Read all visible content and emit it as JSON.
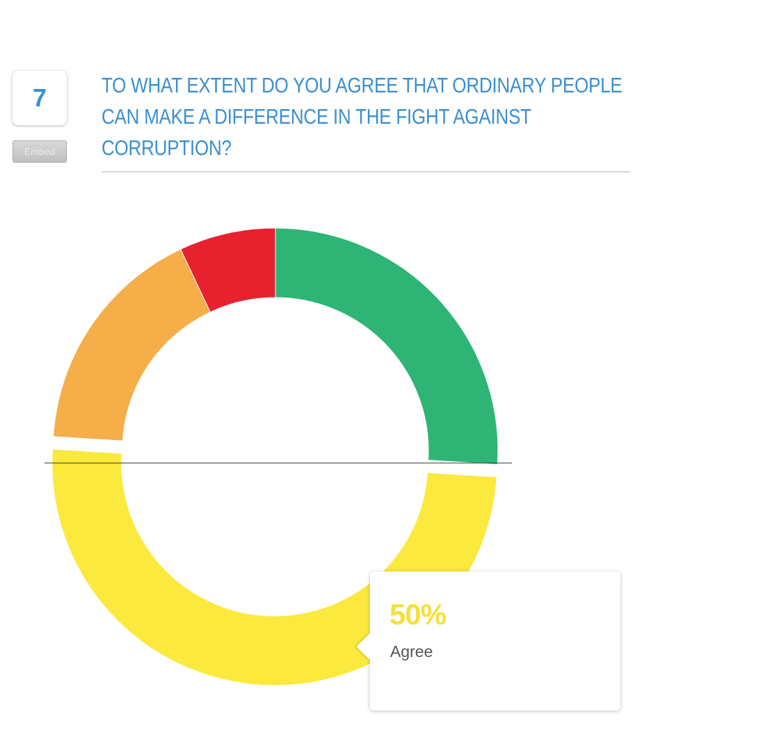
{
  "question": {
    "number": "7",
    "embed_label": "Embed",
    "title": "TO WHAT EXTENT DO YOU AGREE THAT ORDINARY PEOPLE CAN MAKE A DIFFERENCE IN THE FIGHT AGAINST CORRUPTION?"
  },
  "colors": {
    "accent": "#3a8fd0",
    "strongly_agree": "#2eb575",
    "agree": "#fbe93e",
    "disagree": "#f5ae48",
    "strongly_disagree": "#e8212f"
  },
  "chart_data": {
    "type": "pie",
    "title": "TO WHAT EXTENT DO YOU AGREE THAT ORDINARY PEOPLE CAN MAKE A DIFFERENCE IN THE FIGHT AGAINST CORRUPTION?",
    "series": [
      {
        "values": [
          26,
          50,
          17,
          7
        ],
        "colors": [
          "#2eb575",
          "#fbe93e",
          "#f5ae48",
          "#e8212f"
        ],
        "exploded": [
          false,
          true,
          false,
          false
        ]
      }
    ],
    "hovered": {
      "value": "50%",
      "label": "Agree"
    },
    "legend": "none"
  }
}
